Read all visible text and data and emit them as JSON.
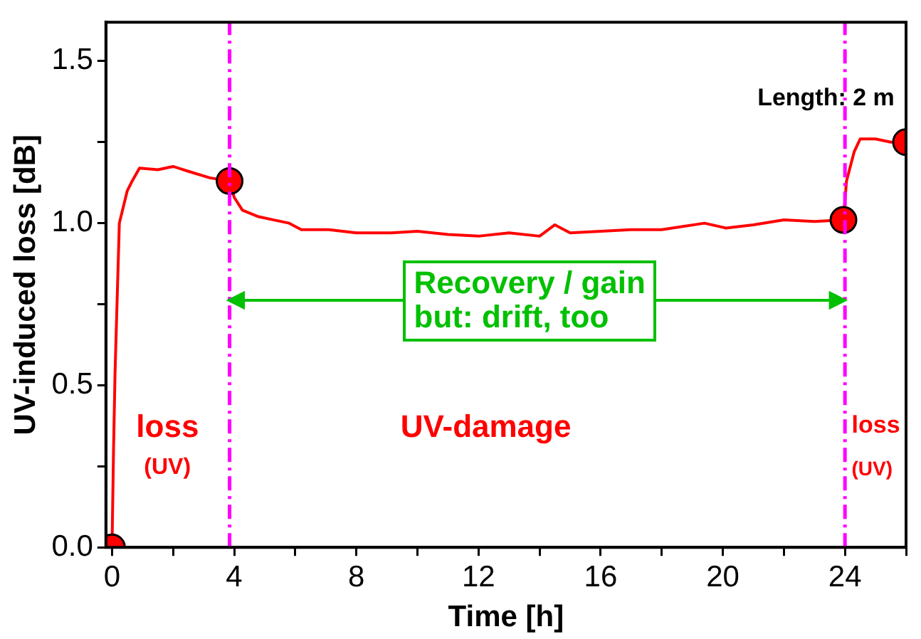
{
  "chart_data": {
    "type": "line",
    "xlabel": "Time [h]",
    "ylabel": "UV-induced loss [dB]",
    "xlim": [
      -0.2,
      26
    ],
    "ylim": [
      0,
      1.62
    ],
    "xticks": [
      0,
      {
        "value": 2,
        "label": null
      },
      4,
      {
        "value": 6,
        "label": null
      },
      8,
      {
        "value": 10,
        "label": null
      },
      12,
      {
        "value": 14,
        "label": null
      },
      16,
      {
        "value": 18,
        "label": null
      },
      20,
      {
        "value": 22,
        "label": null
      },
      24,
      {
        "value": 26,
        "label": null
      }
    ],
    "yticks": [
      {
        "value": 0,
        "label": "0.0"
      },
      {
        "value": 0.25,
        "label": null
      },
      {
        "value": 0.5,
        "label": "0.5"
      },
      {
        "value": 0.75,
        "label": null
      },
      {
        "value": 1,
        "label": "1.0"
      },
      {
        "value": 1.25,
        "label": null
      },
      {
        "value": 1.5,
        "label": "1.5"
      }
    ],
    "series": [
      {
        "type": "line",
        "color": "#ff0000",
        "marker": "none",
        "x": [
          0,
          0.05,
          0.1,
          0.24,
          0.5,
          0.66,
          0.9,
          1.5,
          2,
          2.5,
          3.2,
          3.85,
          4,
          4.27,
          4.8,
          5.3,
          5.8,
          6.2,
          7.1,
          8,
          9.15,
          10,
          11,
          12,
          13,
          14,
          14.5,
          15,
          16,
          17,
          18,
          19.4,
          20.1,
          21,
          22,
          23,
          23.95,
          24.05,
          24.3,
          24.5,
          25,
          25.5,
          26
        ],
        "values": [
          0,
          0.3,
          0.54,
          1,
          1.1,
          1.13,
          1.17,
          1.165,
          1.175,
          1.16,
          1.14,
          1.13,
          1.08,
          1.04,
          1.02,
          1.01,
          1,
          0.98,
          0.98,
          0.97,
          0.97,
          0.975,
          0.965,
          0.96,
          0.97,
          0.96,
          0.995,
          0.97,
          0.975,
          0.98,
          0.98,
          1,
          0.985,
          0.995,
          1.01,
          1.005,
          1.01,
          1.13,
          1.22,
          1.26,
          1.26,
          1.25,
          1.25
        ]
      },
      {
        "type": "scatter",
        "color": "#ff0000",
        "marker": "circle",
        "x": [
          0,
          3.85,
          23.95,
          26
        ],
        "values": [
          0,
          1.13,
          1.01,
          1.25
        ]
      }
    ],
    "ref_lines": [
      {
        "axis": "x",
        "value": 3.85,
        "color": "#ff00ff",
        "line_style": "dashed"
      },
      {
        "axis": "x",
        "value": 24,
        "color": "#ff00ff",
        "line_style": "dashed"
      }
    ],
    "annotations": [
      "Length: 2 m",
      "loss",
      "(UV)",
      "UV-damage",
      "loss",
      "(UV)",
      "Recovery / gain\nbut: drift, too"
    ],
    "grid": false,
    "legend": false
  }
}
